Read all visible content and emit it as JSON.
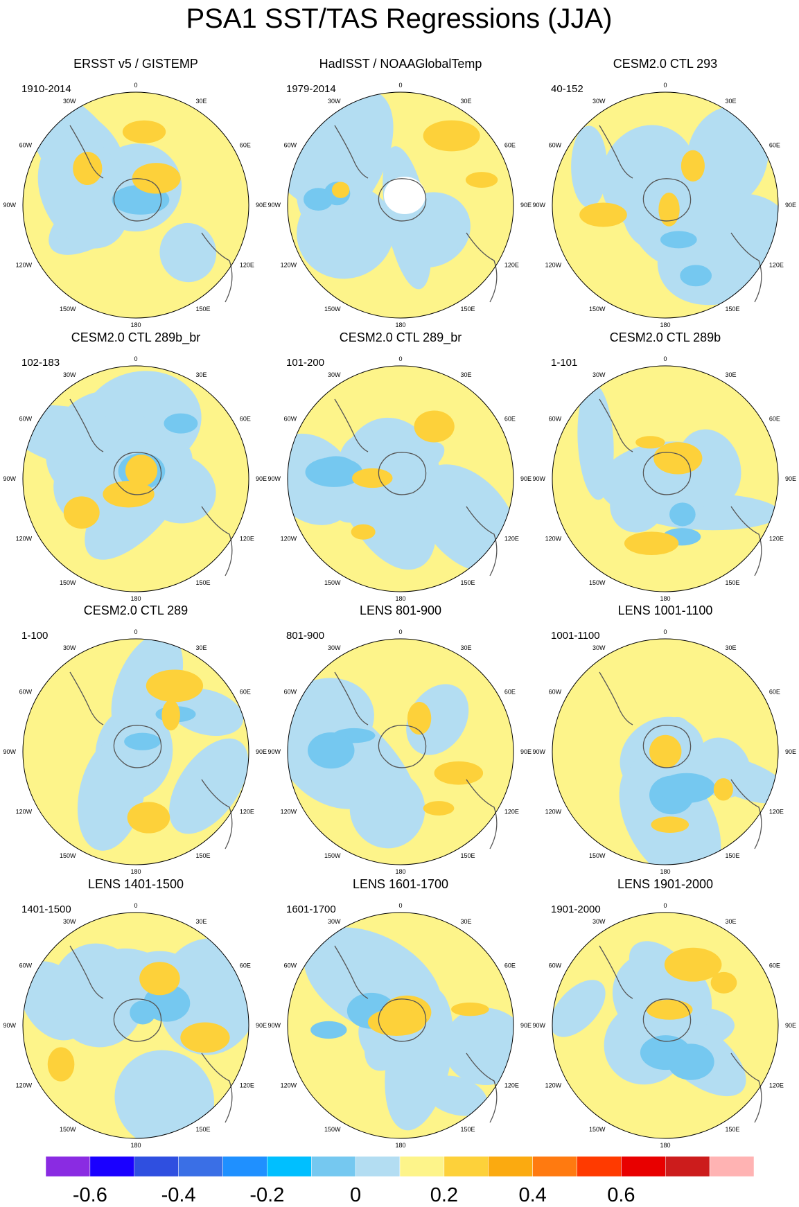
{
  "title": "PSA1 SST/TAS Regressions (JJA)",
  "chart_data": {
    "type": "heatmap",
    "projection": "south-polar-stereographic",
    "longitude_labels": [
      "0",
      "30E",
      "60E",
      "90E",
      "120E",
      "150E",
      "180",
      "150W",
      "120W",
      "90W",
      "60W",
      "30W"
    ],
    "panels": [
      {
        "title": "ERSST v5 / GISTEMP",
        "period": "1910-2014"
      },
      {
        "title": "HadISST / NOAAGlobalTemp",
        "period": "1979-2014"
      },
      {
        "title": "CESM2.0 CTL 293",
        "period": "40-152"
      },
      {
        "title": "CESM2.0 CTL 289b_br",
        "period": "102-183"
      },
      {
        "title": "CESM2.0 CTL 289_br",
        "period": "101-200"
      },
      {
        "title": "CESM2.0 CTL 289b",
        "period": "1-101"
      },
      {
        "title": "CESM2.0 CTL 289",
        "period": "1-100"
      },
      {
        "title": "LENS 801-900",
        "period": "801-900"
      },
      {
        "title": "LENS 1001-1100",
        "period": "1001-1100"
      },
      {
        "title": "LENS 1401-1500",
        "period": "1401-1500"
      },
      {
        "title": "LENS 1601-1700",
        "period": "1601-1700"
      },
      {
        "title": "LENS 1901-2000",
        "period": "1901-2000"
      }
    ],
    "colorbar": {
      "colors": [
        "#8a2be2",
        "#1a00ff",
        "#2f4fe0",
        "#3a6fe6",
        "#1f90ff",
        "#00bfff",
        "#75c8f0",
        "#b3ddf2",
        "#fdf48a",
        "#fdd13a",
        "#fbaa10",
        "#ff7a10",
        "#ff3a00",
        "#e80000",
        "#cc1c1c",
        "#ffb3b3"
      ],
      "labels": [
        "-0.6",
        "-0.4",
        "-0.2",
        "0",
        "0.2",
        "0.4",
        "0.6"
      ],
      "label_bounds": [
        -0.6,
        -0.4,
        -0.2,
        0,
        0.2,
        0.4,
        0.6
      ]
    },
    "ocean_color": "#b3ddf2",
    "positive_color": "#fdf48a"
  }
}
